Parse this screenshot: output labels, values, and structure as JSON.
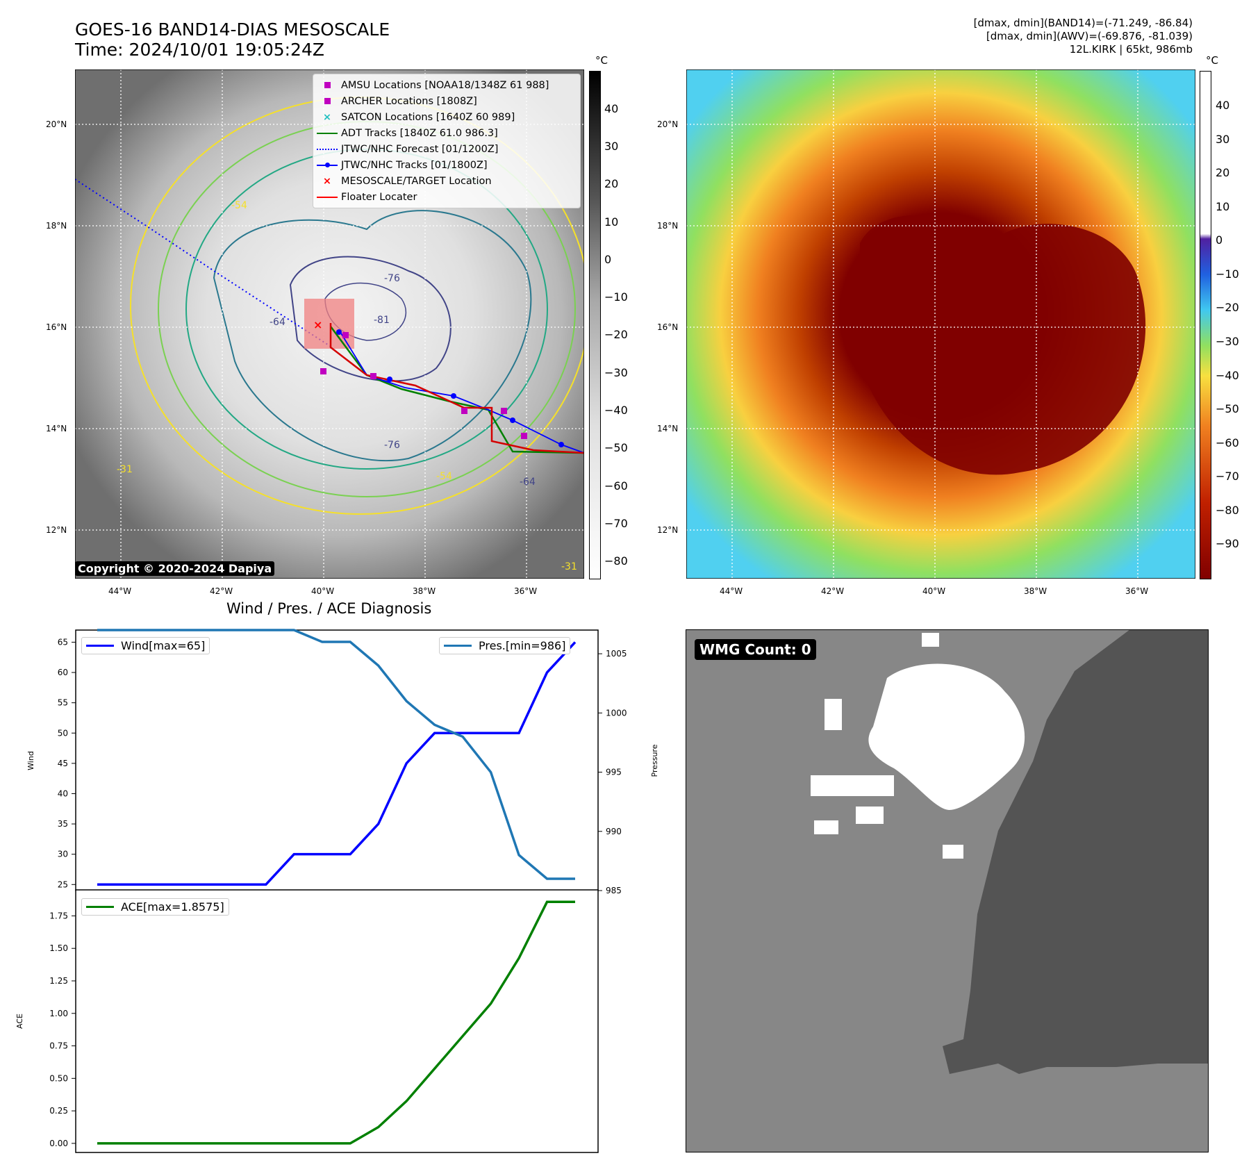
{
  "header": {
    "title_line1": "GOES-16 BAND14-DIAS MESOSCALE",
    "title_line2": "Time: 2024/10/01 19:05:24Z",
    "info_line1": "[dmax, dmin](BAND14)=(-71.249, -86.84)",
    "info_line2": "[dmax, dmin](AWV)=(-69.876, -81.039)",
    "info_line3": "12L.KIRK | 65kt, 986mb"
  },
  "map_axes": {
    "lon_labels": [
      "44°W",
      "42°W",
      "40°W",
      "38°W",
      "36°W"
    ],
    "lat_labels": [
      "20°N",
      "18°N",
      "16°N",
      "14°N",
      "12°N"
    ]
  },
  "left_colorbar": {
    "unit": "°C",
    "ticks": [
      "40",
      "30",
      "20",
      "10",
      "0",
      "−10",
      "−20",
      "−30",
      "−40",
      "−50",
      "−60",
      "−70",
      "−80"
    ]
  },
  "right_colorbar": {
    "unit": "°C",
    "ticks": [
      "40",
      "30",
      "20",
      "10",
      "0",
      "−10",
      "−20",
      "−30",
      "−40",
      "−50",
      "−60",
      "−70",
      "−80",
      "−90"
    ]
  },
  "map_legend": {
    "items": [
      {
        "label": "AMSU Locations [NOAA18/1348Z 61 988]",
        "color": "#c000c0",
        "symbol": "square"
      },
      {
        "label": "ARCHER Locations [1808Z]",
        "color": "#c000c0",
        "symbol": "square"
      },
      {
        "label": "SATCON Locations [1640Z 60 989]",
        "color": "#20c0c0",
        "symbol": "x"
      },
      {
        "label": "ADT Tracks [1840Z 61.0 986.3]",
        "color": "#008000",
        "symbol": "line"
      },
      {
        "label": "JTWC/NHC Forecast [01/1200Z]",
        "color": "#0000ff",
        "symbol": "dotted"
      },
      {
        "label": "JTWC/NHC Tracks [01/1800Z]",
        "color": "#0000ff",
        "symbol": "line-dot"
      },
      {
        "label": "MESOSCALE/TARGET Location",
        "color": "#ff0000",
        "symbol": "x"
      },
      {
        "label": "Floater Locater",
        "color": "#ff0000",
        "symbol": "line"
      }
    ]
  },
  "contour_labels": [
    "-54",
    "-76",
    "-81",
    "-64",
    "-31",
    "-76",
    "-54",
    "-64",
    "-31"
  ],
  "copyright": "Copyright © 2020-2024 Dapiya",
  "wmg_panel": {
    "badge": "WMG Count: 0"
  },
  "chart_data": [
    {
      "type": "line",
      "title": "Wind / Pres. / ACE Diagnosis",
      "x": [
        0,
        1,
        2,
        3,
        4,
        5,
        6,
        7,
        8,
        9,
        10,
        11,
        12,
        13,
        14,
        15,
        16,
        17
      ],
      "ylabel_left": "Wind",
      "ylabel_right": "Pressure",
      "ylim_left": [
        24,
        67
      ],
      "ylim_right": [
        985,
        1007
      ],
      "yticks_left": [
        "25",
        "30",
        "35",
        "40",
        "45",
        "50",
        "55",
        "60",
        "65"
      ],
      "yticks_right": [
        "985",
        "990",
        "995",
        "1000",
        "1005"
      ],
      "series": [
        {
          "name": "Wind[max=65]",
          "color": "#0000ff",
          "axis": "left",
          "values": [
            25,
            25,
            25,
            25,
            25,
            25,
            25,
            30,
            30,
            30,
            35,
            45,
            50,
            50,
            50,
            50,
            60,
            65
          ]
        },
        {
          "name": "Pres.[min=986]",
          "color": "#1f77b4",
          "axis": "right",
          "values": [
            1007,
            1007,
            1007,
            1007,
            1007,
            1007,
            1007,
            1007,
            1006,
            1006,
            1004,
            1001,
            999,
            998,
            995,
            988,
            986,
            986
          ]
        }
      ]
    },
    {
      "type": "line",
      "x": [
        0,
        1,
        2,
        3,
        4,
        5,
        6,
        7,
        8,
        9,
        10,
        11,
        12,
        13,
        14,
        15,
        16,
        17
      ],
      "ylabel": "ACE",
      "ylim": [
        -0.07,
        1.95
      ],
      "yticks": [
        "0.00",
        "0.25",
        "0.50",
        "0.75",
        "1.00",
        "1.25",
        "1.50",
        "1.75"
      ],
      "series": [
        {
          "name": "ACE[max=1.8575]",
          "color": "#008000",
          "values": [
            0,
            0,
            0,
            0,
            0,
            0,
            0,
            0,
            0,
            0,
            0.125,
            0.325,
            0.575,
            0.825,
            1.075,
            1.425,
            1.8575,
            1.8575
          ]
        }
      ]
    }
  ]
}
